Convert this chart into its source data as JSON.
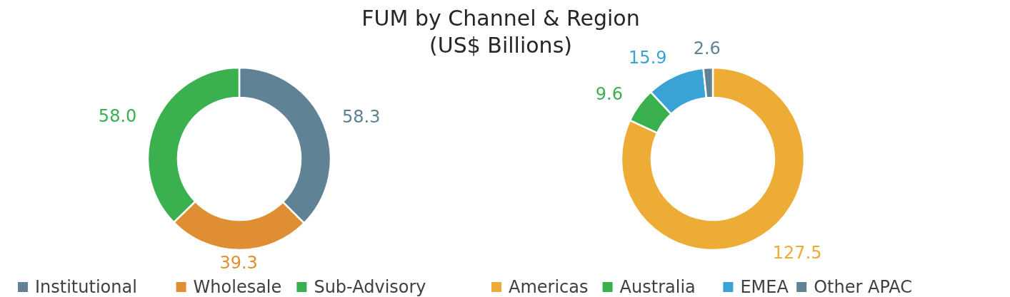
{
  "chart_data": [
    {
      "type": "donut",
      "title": "FUM by Channel & Region",
      "subtitle": "(US$ Billions)",
      "categories": [
        "Institutional",
        "Wholesale",
        "Sub-Advisory"
      ],
      "values": [
        58.3,
        39.3,
        58.0
      ],
      "colors": [
        "#5f8294",
        "#e08e33",
        "#3ab04f"
      ],
      "value_labels": [
        "58.3",
        "39.3",
        "58.0"
      ],
      "legend": "bottom"
    },
    {
      "type": "donut",
      "categories": [
        "Americas",
        "Australia",
        "EMEA",
        "Other APAC"
      ],
      "values": [
        127.5,
        9.6,
        15.9,
        2.6
      ],
      "colors": [
        "#edac36",
        "#3ab04f",
        "#38a3d4",
        "#5f8294"
      ],
      "value_labels": [
        "127.5",
        "9.6",
        "15.9",
        "2.6"
      ],
      "legend": "bottom"
    }
  ]
}
